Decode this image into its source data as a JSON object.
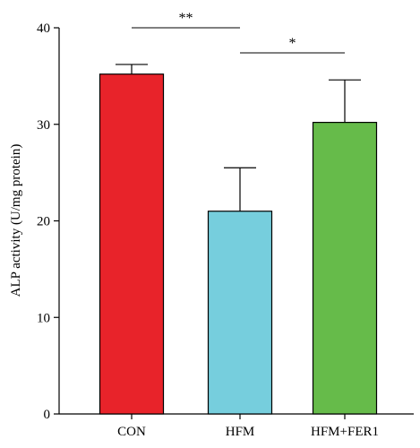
{
  "chart_data": {
    "type": "bar",
    "categories": [
      "CON",
      "HFM",
      "HFM+FER1"
    ],
    "values": [
      35.2,
      21.0,
      30.2
    ],
    "errors": [
      1.0,
      4.5,
      4.4
    ],
    "colors": [
      "#e8232a",
      "#76cedd",
      "#66bb4a"
    ],
    "ylabel": "ALP activity (U/mg protein)",
    "xlabel": "",
    "title": "",
    "ylim": [
      0,
      40
    ],
    "yticks": [
      "0",
      "10",
      "20",
      "30",
      "40"
    ],
    "grid": false,
    "significance": [
      {
        "from": "CON",
        "to": "HFM",
        "label": "**",
        "level": 40.0
      },
      {
        "from": "HFM",
        "to": "HFM+FER1",
        "label": "*",
        "level": 37.4
      }
    ]
  }
}
